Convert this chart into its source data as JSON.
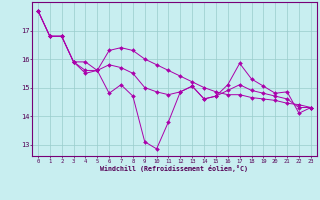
{
  "xlabel": "Windchill (Refroidissement éolien,°C)",
  "background_color": "#c8eef0",
  "grid_color": "#99cccc",
  "line_color": "#aa00aa",
  "marker_color": "#aa00aa",
  "hours": [
    0,
    1,
    2,
    3,
    4,
    5,
    6,
    7,
    8,
    9,
    10,
    11,
    12,
    13,
    14,
    15,
    16,
    17,
    18,
    19,
    20,
    21,
    22,
    23
  ],
  "series_main": [
    17.7,
    16.8,
    16.8,
    15.9,
    15.5,
    15.6,
    14.8,
    15.1,
    14.7,
    13.1,
    12.85,
    13.8,
    14.85,
    15.05,
    14.6,
    14.7,
    15.1,
    15.85,
    15.3,
    15.05,
    14.8,
    14.85,
    14.1,
    14.3
  ],
  "series_upper": [
    17.7,
    16.8,
    16.8,
    15.9,
    15.9,
    15.6,
    16.3,
    16.4,
    16.3,
    16.0,
    15.8,
    15.6,
    15.4,
    15.2,
    15.0,
    14.85,
    14.75,
    14.75,
    14.65,
    14.6,
    14.55,
    14.45,
    14.4,
    14.3
  ],
  "series_lower": [
    17.7,
    16.8,
    16.8,
    15.9,
    15.6,
    15.6,
    15.8,
    15.7,
    15.5,
    15.0,
    14.85,
    14.75,
    14.85,
    15.05,
    14.6,
    14.7,
    14.9,
    15.1,
    14.9,
    14.8,
    14.7,
    14.6,
    14.3,
    14.3
  ],
  "ylim_min": 12.6,
  "ylim_max": 18.0,
  "yticks": [
    13,
    14,
    15,
    16,
    17
  ],
  "xlim_min": -0.5,
  "xlim_max": 23.5
}
